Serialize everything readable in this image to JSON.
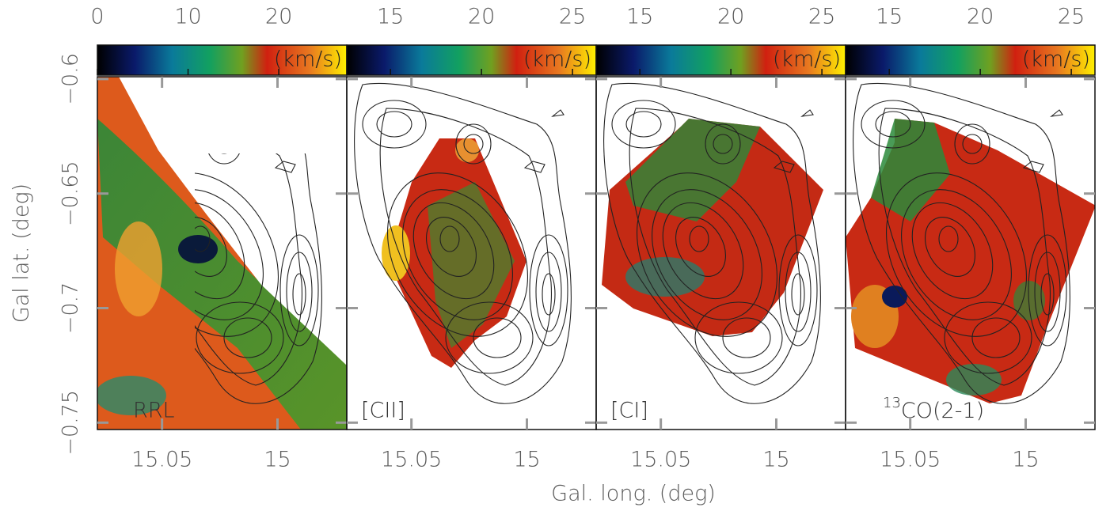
{
  "panels": [
    {
      "label": "RRL",
      "colorbar": {
        "lim": [
          0,
          27.5
        ],
        "ticks": [
          0,
          10,
          20
        ],
        "unit": "(km/s)"
      }
    },
    {
      "label": "[CII]",
      "colorbar": {
        "lim": [
          12.6,
          26.3
        ],
        "ticks": [
          15,
          20,
          25
        ],
        "unit": "(km/s)"
      }
    },
    {
      "label": "[CI]",
      "colorbar": {
        "lim": [
          12.6,
          26.3
        ],
        "ticks": [
          15,
          20,
          25
        ],
        "unit": "(km/s)"
      }
    },
    {
      "label": {
        "sup": "13",
        "text": "CO(2-1)"
      },
      "colorbar": {
        "lim": [
          12.6,
          26.3
        ],
        "ticks": [
          15,
          20,
          25
        ],
        "unit": "(km/s)"
      }
    }
  ],
  "x_axis": {
    "label": "Gal. long. (deg)",
    "lim": [
      15.078,
      14.97
    ],
    "ticks": [
      15.05,
      15
    ]
  },
  "y_axis": {
    "label": "Gal lat. (deg)",
    "lim": [
      -0.753,
      -0.599
    ],
    "ticks": [
      {
        "value": -0.6,
        "label": "−0.6"
      },
      {
        "value": -0.65,
        "label": "−0.65"
      },
      {
        "value": -0.7,
        "label": "−0.7"
      },
      {
        "value": -0.75,
        "label": "−0.75"
      }
    ]
  }
}
